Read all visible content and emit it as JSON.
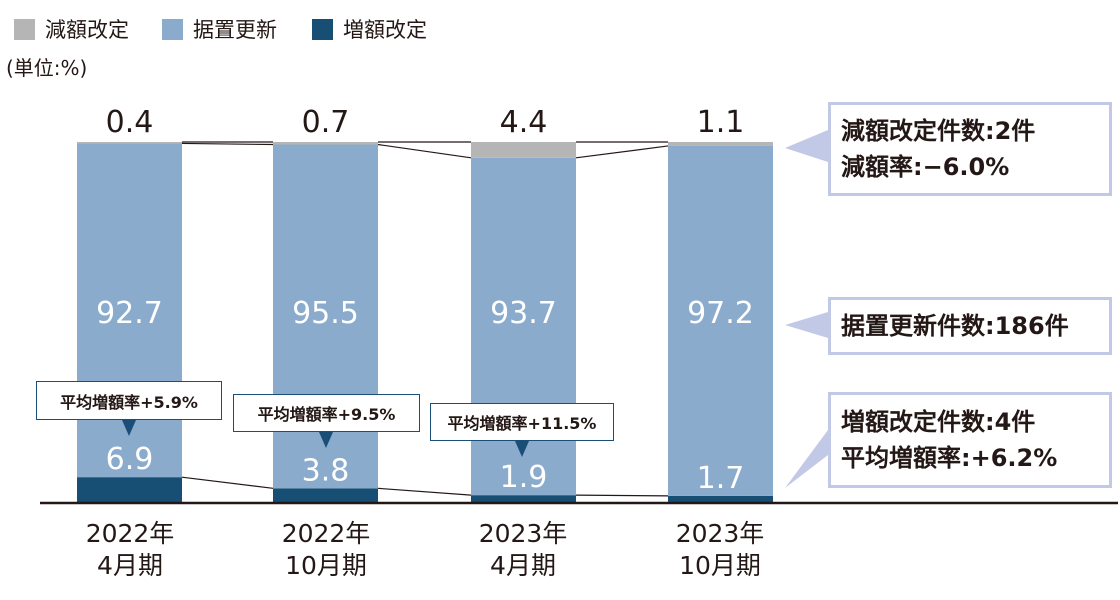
{
  "legend": [
    {
      "label": "減額改定",
      "color": "#b5b5b6"
    },
    {
      "label": "据置更新",
      "color": "#8aabcc"
    },
    {
      "label": "増額改定",
      "color": "#174f74"
    }
  ],
  "unit_label": "(単位:%)",
  "chart_data": {
    "type": "bar",
    "stacked": true,
    "categories": [
      [
        "2022年",
        "4月期"
      ],
      [
        "2022年",
        "10月期"
      ],
      [
        "2023年",
        "4月期"
      ],
      [
        "2023年",
        "10月期"
      ]
    ],
    "series": [
      {
        "name": "増額改定",
        "values": [
          6.9,
          3.8,
          1.9,
          1.7
        ],
        "color": "#174f74"
      },
      {
        "name": "据置更新",
        "values": [
          92.7,
          95.5,
          93.7,
          97.2
        ],
        "color": "#8aabcc"
      },
      {
        "name": "減額改定",
        "values": [
          0.4,
          0.7,
          4.4,
          1.1
        ],
        "color": "#b5b5b6"
      }
    ],
    "ylim": [
      0,
      100
    ],
    "grid": false,
    "legend_position": "top-left",
    "annotations": [
      "平均増額率+5.9%",
      "平均増額率+9.5%",
      "平均増額率+11.5%"
    ]
  },
  "callouts": [
    {
      "lines": [
        "減額改定件数:2件",
        "減額率:−6.0%"
      ]
    },
    {
      "lines": [
        "据置更新件数:186件"
      ]
    },
    {
      "lines": [
        "増額改定件数:4件",
        "平均増額率:+6.2%"
      ]
    }
  ]
}
